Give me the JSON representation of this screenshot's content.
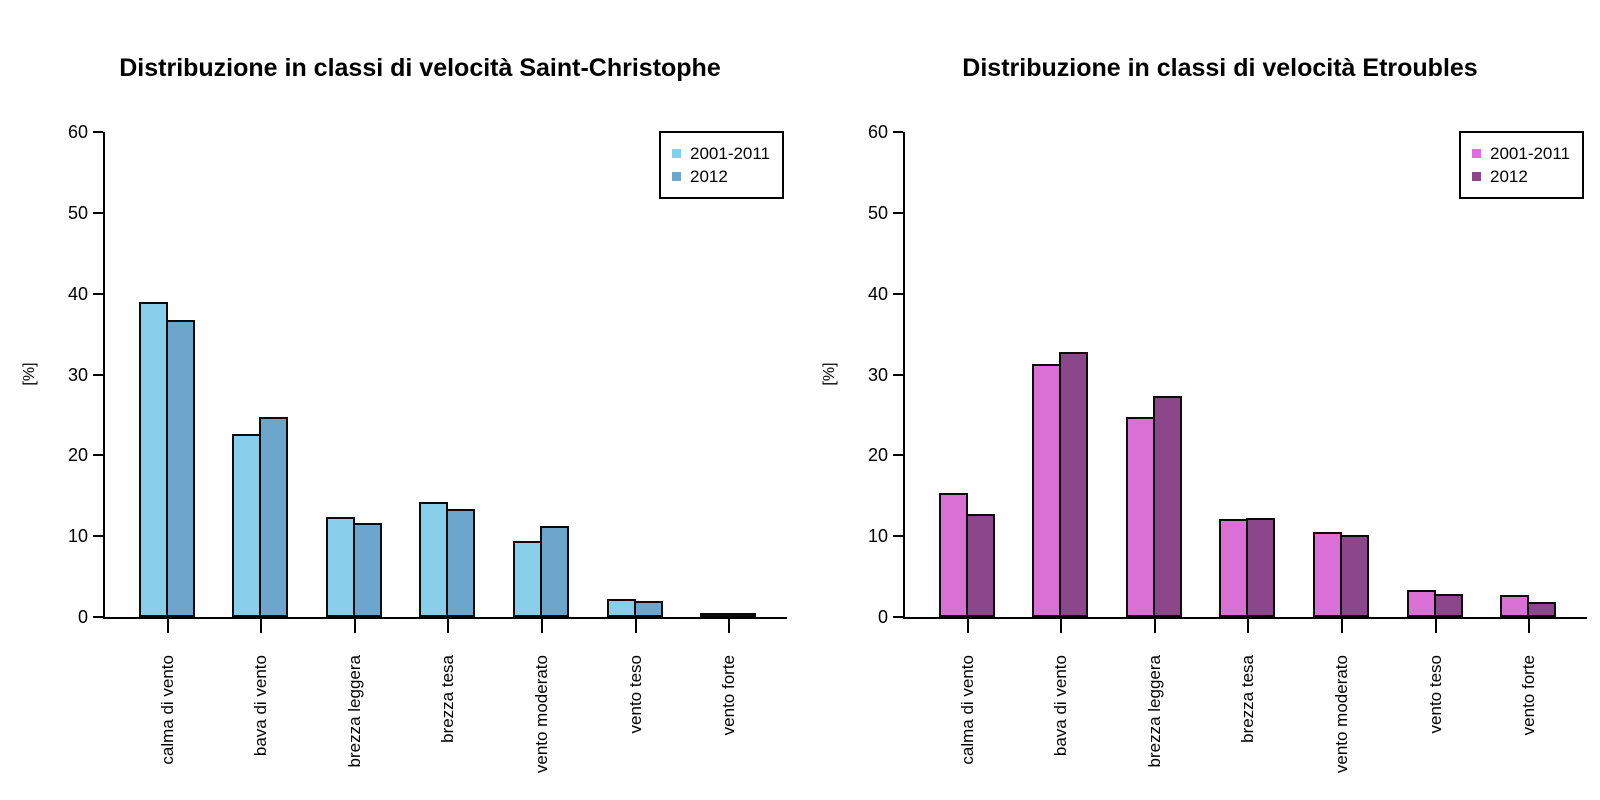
{
  "figure": {
    "background": "#ffffff",
    "axis_color": "#000000",
    "bar_outline_color": "#0a0a0a"
  },
  "chart_data": [
    {
      "type": "bar",
      "title": "Distribuzione in classi di velocità Saint-Christophe",
      "ylabel": "[%]",
      "ylim": [
        0,
        60
      ],
      "yticks": [
        0,
        10,
        20,
        30,
        40,
        50,
        60
      ],
      "grid": false,
      "legend_position": "top-right",
      "categories": [
        "calma di vento",
        "bava di vento",
        "brezza leggera",
        "brezza tesa",
        "vento moderato",
        "vento teso",
        "vento forte"
      ],
      "series": [
        {
          "name": "2001-2011",
          "color": "#87CEEB",
          "values": [
            39.0,
            22.6,
            12.4,
            14.2,
            9.4,
            2.2,
            0.5
          ]
        },
        {
          "name": "2012",
          "color": "#6CA6CD",
          "values": [
            36.7,
            24.8,
            11.6,
            13.3,
            11.3,
            2.0,
            0.3
          ]
        }
      ]
    },
    {
      "type": "bar",
      "title": "Distribuzione in classi di velocità Etroubles",
      "ylabel": "[%]",
      "ylim": [
        0,
        60
      ],
      "yticks": [
        0,
        10,
        20,
        30,
        40,
        50,
        60
      ],
      "grid": false,
      "legend_position": "top-right",
      "categories": [
        "calma di vento",
        "bava di vento",
        "brezza leggera",
        "brezza tesa",
        "vento moderato",
        "vento teso",
        "vento forte"
      ],
      "series": [
        {
          "name": "2001-2011",
          "color": "#DA70D6",
          "values": [
            15.3,
            31.3,
            24.7,
            12.1,
            10.5,
            3.4,
            2.7
          ]
        },
        {
          "name": "2012",
          "color": "#8B4789",
          "values": [
            12.8,
            32.8,
            27.3,
            12.2,
            10.1,
            2.9,
            1.9
          ]
        }
      ]
    }
  ]
}
